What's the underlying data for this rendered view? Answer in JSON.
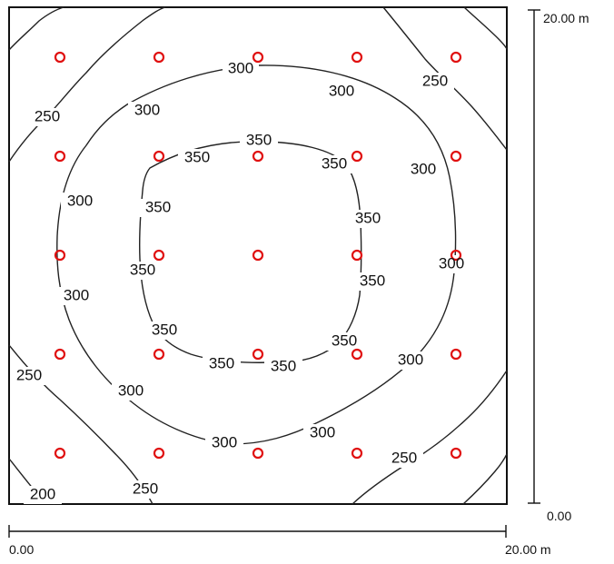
{
  "colors": {
    "contour": "#222222",
    "marker": "#e01010",
    "frame": "#111111"
  },
  "scale": {
    "x_start": "0.00",
    "x_end": "20.00 m",
    "y_start": "0.00",
    "y_end": "20.00 m"
  },
  "contour_levels": [
    "200",
    "250",
    "300",
    "350"
  ],
  "labels": {
    "l1": "300",
    "l2": "300",
    "l3": "250",
    "l4": "250",
    "l5": "300",
    "l6": "350",
    "l7": "350",
    "l8": "350",
    "l9": "300",
    "l10": "300",
    "l11": "350",
    "l12": "350",
    "l13": "300",
    "l14": "350",
    "l15": "350",
    "l16": "300",
    "l17": "350",
    "l18": "350",
    "l19": "350",
    "l20": "350",
    "l21": "300",
    "l22": "250",
    "l23": "300",
    "l24": "300",
    "l25": "300",
    "l26": "250",
    "l27": "200",
    "l28": "250"
  }
}
